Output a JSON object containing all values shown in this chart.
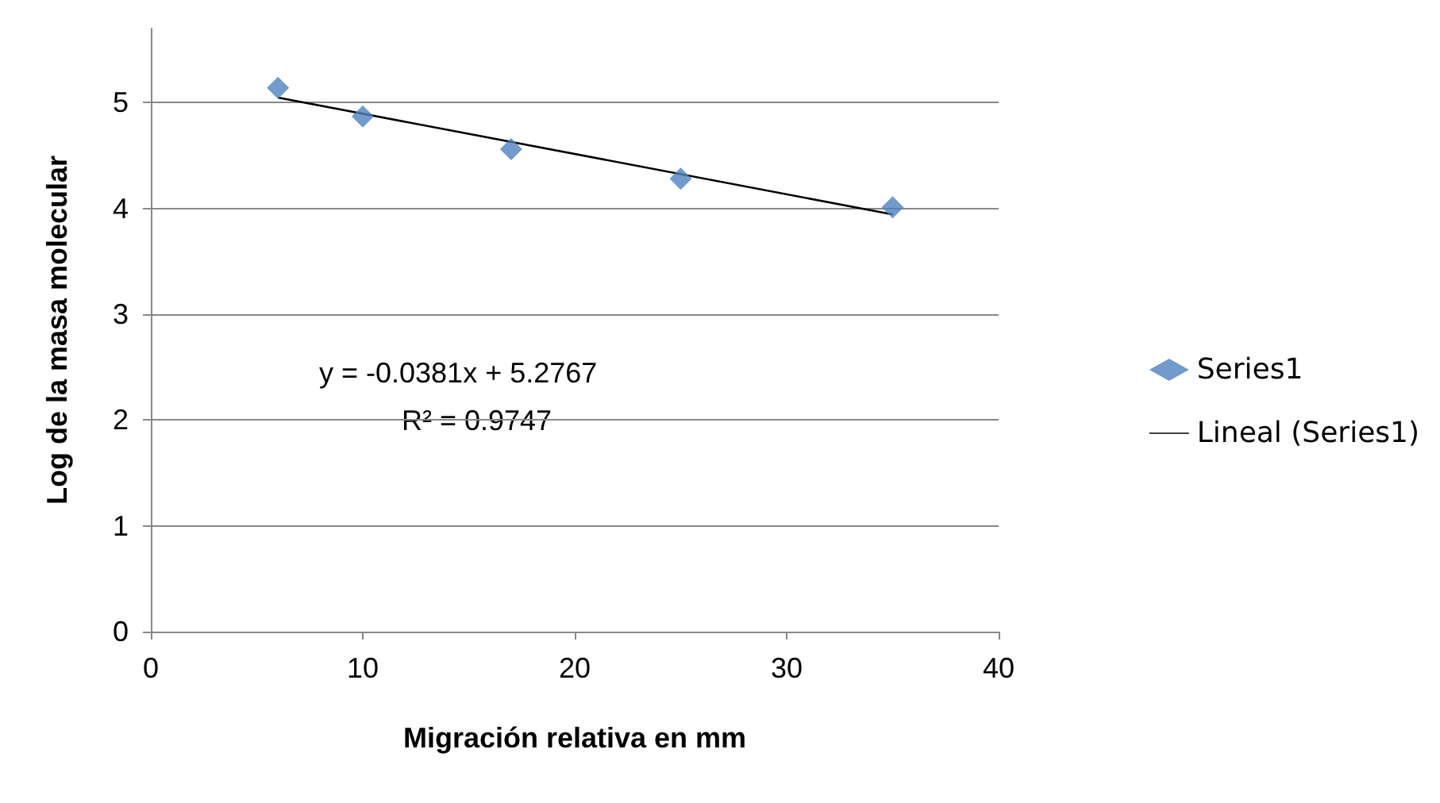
{
  "chart_data": {
    "type": "scatter",
    "xlabel": "Migración relativa en mm",
    "ylabel": "Log de la masa molecular",
    "xlim": [
      0,
      40
    ],
    "xticks": [
      0,
      10,
      20,
      30,
      40
    ],
    "ylim": [
      0,
      5.7
    ],
    "yticks": [
      0,
      1,
      2,
      3,
      4,
      5
    ],
    "grid": "y",
    "legend": "right",
    "marker": "diamond",
    "series": [
      {
        "name": "Series1",
        "color": "#4f81bd",
        "x": [
          6,
          10,
          17,
          25,
          35
        ],
        "values": [
          5.14,
          4.87,
          4.56,
          4.28,
          4.01
        ]
      },
      {
        "name": "Lineal (Series1)",
        "type": "line",
        "color": "#000000",
        "x": [
          6,
          35
        ],
        "values": [
          5.048,
          3.943
        ],
        "marker": "none",
        "line_style": "solid"
      }
    ],
    "annotations": [
      "y = -0.0381x + 5.2767",
      "R² = 0.9747"
    ]
  }
}
